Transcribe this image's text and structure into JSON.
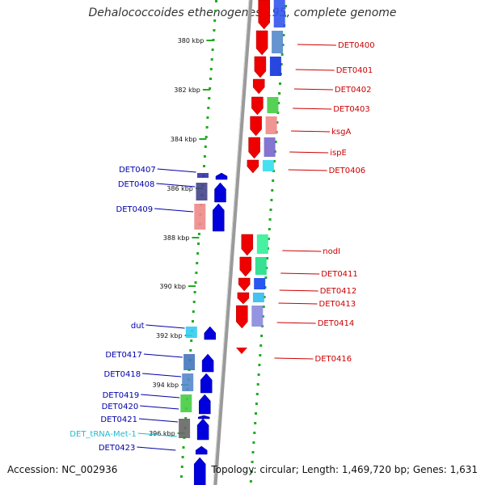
{
  "title": "Dehalococcoides ethenogenes 195, complete genome",
  "footer": {
    "accession": "Accession: NC_002936",
    "stats": "Topology: circular; Length: 1,469,720 bp; Genes: 1,631"
  },
  "colors": {
    "forward_arrow": "#ee0000",
    "reverse_arrow": "#0000dd",
    "forward_label": "#cc0000",
    "reverse_label": "#0000aa",
    "trna_label": "#22bbcc",
    "tick_dots": "#22aa22",
    "backbone": "#888888"
  },
  "scale": {
    "ticks": [
      {
        "label": "380 kbp"
      },
      {
        "label": "382 kbp"
      },
      {
        "label": "384 kbp"
      },
      {
        "label": "386 kbp"
      },
      {
        "label": "388 kbp"
      },
      {
        "label": "390 kbp"
      },
      {
        "label": "392 kbp"
      },
      {
        "label": "394 kbp"
      },
      {
        "label": "396 kbp"
      }
    ]
  },
  "forward_genes": [
    {
      "label": "DET0400"
    },
    {
      "label": "DET0401"
    },
    {
      "label": "DET0402"
    },
    {
      "label": "DET0403"
    },
    {
      "label": "ksgA"
    },
    {
      "label": "ispE"
    },
    {
      "label": "DET0406"
    },
    {
      "label": "nodI"
    },
    {
      "label": "DET0411"
    },
    {
      "label": "DET0412"
    },
    {
      "label": "DET0413"
    },
    {
      "label": "DET0414"
    },
    {
      "label": "DET0416"
    }
  ],
  "reverse_genes": [
    {
      "label": "DET0407"
    },
    {
      "label": "DET0408"
    },
    {
      "label": "DET0409"
    },
    {
      "label": "dut"
    },
    {
      "label": "DET0417"
    },
    {
      "label": "DET0418"
    },
    {
      "label": "DET0419"
    },
    {
      "label": "DET0420"
    },
    {
      "label": "DET0421"
    },
    {
      "label": "DET_tRNA-Met-1"
    },
    {
      "label": "DET0423"
    }
  ]
}
